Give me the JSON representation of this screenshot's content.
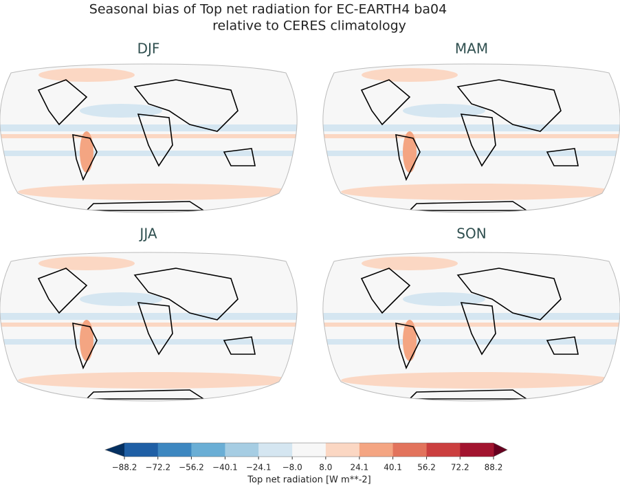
{
  "title": [
    "Seasonal bias of Top net radiation for EC-EARTH4 ba04",
    "relative to CERES climatology"
  ],
  "panels": [
    {
      "title": "DJF"
    },
    {
      "title": "MAM"
    },
    {
      "title": "JJA"
    },
    {
      "title": "SON"
    }
  ],
  "colorbar": {
    "label": "Top net radiation [W m**-2]",
    "ticks": [
      {
        "value": -88.2,
        "label": "−88.2"
      },
      {
        "value": -72.2,
        "label": "−72.2"
      },
      {
        "value": -56.2,
        "label": "−56.2"
      },
      {
        "value": -40.1,
        "label": "−40.1"
      },
      {
        "value": -24.1,
        "label": "−24.1"
      },
      {
        "value": -8.0,
        "label": "−8.0"
      },
      {
        "value": 8.0,
        "label": "8.0"
      },
      24.1,
      40.1,
      56.2,
      72.2,
      88.2
    ],
    "colors": [
      "#1f5fa5",
      "#3d87c0",
      "#6aaed5",
      "#a6cde3",
      "#d5e6f1",
      "#f7f7f7",
      "#fbd7c3",
      "#f4a582",
      "#e2735c",
      "#cb3f3f",
      "#a2142f"
    ],
    "under_color": "#053061",
    "over_color": "#67001f"
  }
}
